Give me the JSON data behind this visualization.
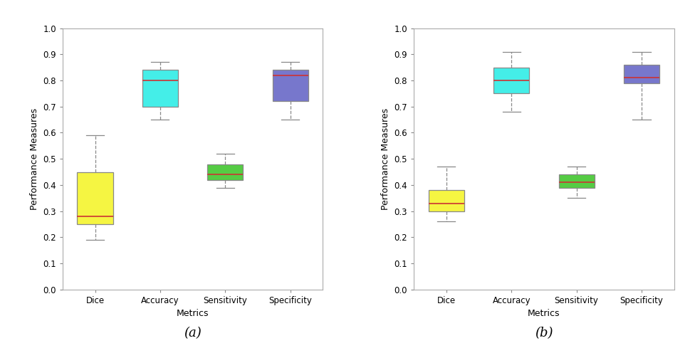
{
  "subplot_a": {
    "categories": [
      "Dice",
      "Accuracy",
      "Sensitivity",
      "Specificity"
    ],
    "colors": [
      "#f5f542",
      "#44eee8",
      "#55cc44",
      "#7777cc"
    ],
    "boxes": [
      {
        "whislo": 0.19,
        "q1": 0.25,
        "med": 0.28,
        "q3": 0.45,
        "whishi": 0.59
      },
      {
        "whislo": 0.65,
        "q1": 0.7,
        "med": 0.8,
        "q3": 0.84,
        "whishi": 0.87
      },
      {
        "whislo": 0.39,
        "q1": 0.42,
        "med": 0.44,
        "q3": 0.48,
        "whishi": 0.52
      },
      {
        "whislo": 0.65,
        "q1": 0.72,
        "med": 0.82,
        "q3": 0.84,
        "whishi": 0.87
      }
    ]
  },
  "subplot_b": {
    "categories": [
      "Dice",
      "Accuracy",
      "Sensitivity",
      "Specificity"
    ],
    "colors": [
      "#f5f542",
      "#44eee8",
      "#55cc44",
      "#7777cc"
    ],
    "boxes": [
      {
        "whislo": 0.26,
        "q1": 0.3,
        "med": 0.33,
        "q3": 0.38,
        "whishi": 0.47
      },
      {
        "whislo": 0.68,
        "q1": 0.75,
        "med": 0.8,
        "q3": 0.85,
        "whishi": 0.91
      },
      {
        "whislo": 0.35,
        "q1": 0.39,
        "med": 0.41,
        "q3": 0.44,
        "whishi": 0.47
      },
      {
        "whislo": 0.65,
        "q1": 0.79,
        "med": 0.81,
        "q3": 0.86,
        "whishi": 0.91
      }
    ]
  },
  "ylabel": "Performance Measures",
  "xlabel": "Metrics",
  "ylim": [
    0,
    1.0
  ],
  "yticks": [
    0,
    0.1,
    0.2,
    0.3,
    0.4,
    0.5,
    0.6,
    0.7,
    0.8,
    0.9,
    1
  ],
  "label_a": "(a)",
  "label_b": "(b)"
}
